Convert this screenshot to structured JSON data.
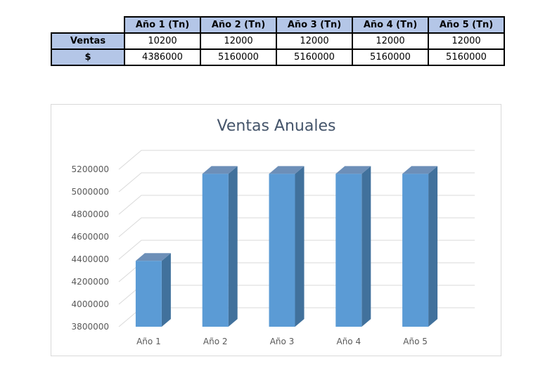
{
  "table": {
    "headers": [
      "Año 1 (Tn)",
      "Año 2  (Tn)",
      "Año 3 (Tn)",
      "Año 4 (Tn)",
      "Año 5  (Tn)"
    ],
    "rows": [
      {
        "label": "Ventas",
        "values": [
          "10200",
          "12000",
          "12000",
          "12000",
          "12000"
        ]
      },
      {
        "label": "$",
        "values": [
          "4386000",
          "5160000",
          "5160000",
          "5160000",
          "5160000"
        ]
      }
    ]
  },
  "chart_data": {
    "type": "bar",
    "title": "Ventas Anuales",
    "categories": [
      "Año 1",
      "Año 2",
      "Año 3",
      "Año 4",
      "Año 5"
    ],
    "values": [
      4386000,
      5160000,
      5160000,
      5160000,
      5160000
    ],
    "ylim": [
      3800000,
      5200000
    ],
    "yticks": [
      3800000,
      4000000,
      4200000,
      4400000,
      4600000,
      4800000,
      5000000,
      5200000
    ],
    "grid": true,
    "legend": "none",
    "colors": {
      "bar_front": "#5b9bd5",
      "bar_side": "#41719c",
      "bar_top": "#6d8fb8",
      "grid": "#d9d9d9",
      "title": "#44546a"
    }
  }
}
